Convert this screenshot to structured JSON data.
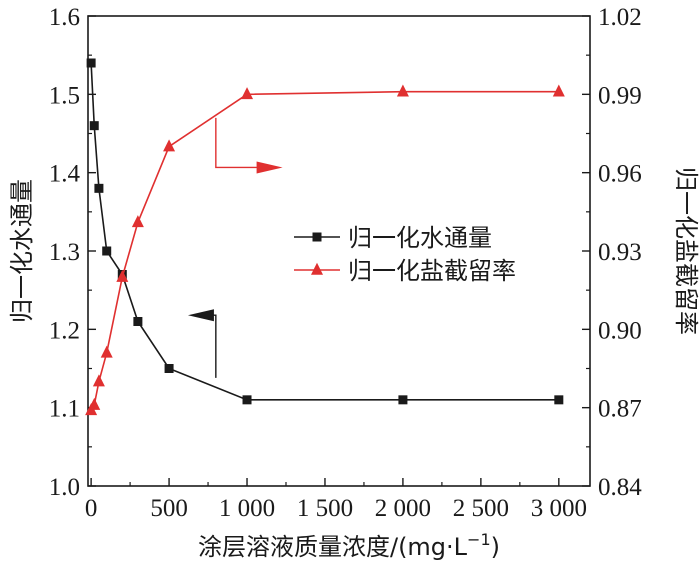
{
  "chart_data": {
    "type": "line",
    "title": "",
    "xlabel": "涂层溶液质量浓度/(mg·L",
    "xlabel_sup": "−1",
    "xlabel_close": ")",
    "ylabel_left": "归一化水通量",
    "ylabel_right": "归一化盐截留率",
    "x_ticks": [
      0,
      500,
      1000,
      1500,
      2000,
      2500,
      3000
    ],
    "x_tick_labels": [
      "0",
      "500",
      "1 000",
      "1 500",
      "2 000",
      "2 500",
      "3 000"
    ],
    "xlim": [
      -20,
      3200
    ],
    "y_left_ticks": [
      1.0,
      1.1,
      1.2,
      1.3,
      1.4,
      1.5,
      1.6
    ],
    "y_left_tick_labels": [
      "1.0",
      "1.1",
      "1.2",
      "1.3",
      "1.4",
      "1.5",
      "1.6"
    ],
    "ylim_left": [
      1.0,
      1.6
    ],
    "y_right_ticks": [
      0.84,
      0.87,
      0.9,
      0.93,
      0.96,
      0.99,
      1.02
    ],
    "y_right_tick_labels": [
      "0.84",
      "0.87",
      "0.90",
      "0.93",
      "0.96",
      "0.99",
      "1.02"
    ],
    "ylim_right": [
      0.84,
      1.02
    ],
    "legend_position": "center-right",
    "series": [
      {
        "name": "归一化水通量",
        "axis": "left",
        "marker": "square",
        "color": "#1a1a1a",
        "x": [
          0,
          20,
          50,
          100,
          200,
          300,
          500,
          1000,
          2000,
          3000
        ],
        "y": [
          1.54,
          1.46,
          1.38,
          1.3,
          1.27,
          1.21,
          1.15,
          1.11,
          1.11,
          1.11
        ]
      },
      {
        "name": "归一化盐截留率",
        "axis": "right",
        "marker": "triangle",
        "color": "#e03030",
        "x": [
          0,
          20,
          50,
          100,
          200,
          300,
          500,
          1000,
          2000,
          3000
        ],
        "y": [
          0.869,
          0.871,
          0.88,
          0.891,
          0.92,
          0.941,
          0.97,
          0.99,
          0.991,
          0.991
        ]
      }
    ],
    "annotations": [
      {
        "type": "arrow",
        "series": "归一化水通量",
        "direction": "left"
      },
      {
        "type": "arrow",
        "series": "归一化盐截留率",
        "direction": "right"
      }
    ]
  }
}
